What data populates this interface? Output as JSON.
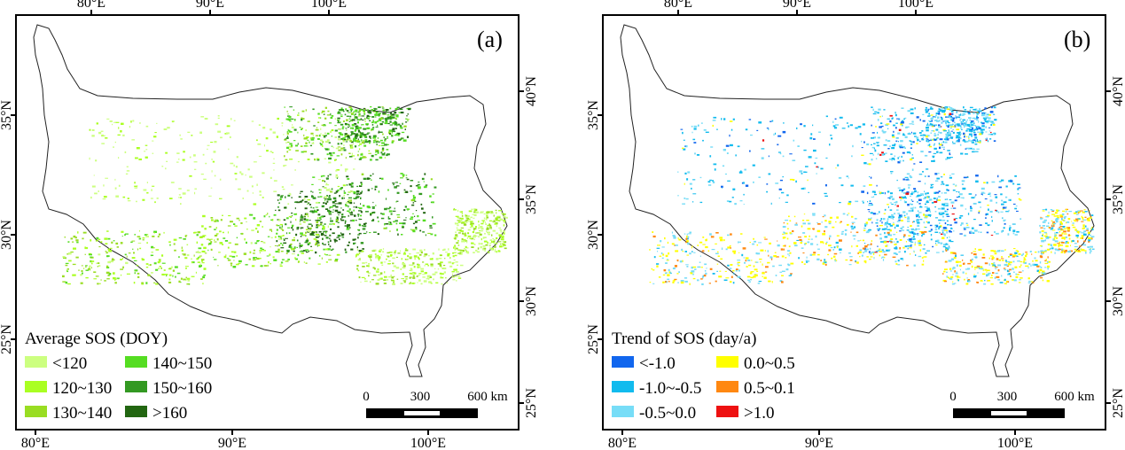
{
  "panels": [
    {
      "label": "(a)",
      "legend_title": "Average SOS (DOY)",
      "legend": [
        {
          "label": "<120",
          "color": "#ccff80"
        },
        {
          "label": "120~130",
          "color": "#aaff22"
        },
        {
          "label": "130~140",
          "color": "#99dd22"
        },
        {
          "label": "140~150",
          "color": "#55dd22"
        },
        {
          "label": "150~160",
          "color": "#339922"
        },
        {
          "label": ">160",
          "color": "#226611"
        }
      ],
      "top_ticks": [
        "80°E",
        "90°E",
        "100°E"
      ],
      "bottom_ticks": [
        "80°E",
        "90°E",
        "100°E"
      ],
      "left_ticks": [
        "35°N",
        "30°N",
        "25°N"
      ],
      "right_ticks": [
        "40°N",
        "35°N",
        "30°N",
        "25°N"
      ],
      "scale": [
        "0",
        "300",
        "600 km"
      ]
    },
    {
      "label": "(b)",
      "legend_title": "Trend of SOS (day/a)",
      "legend": [
        {
          "label": "<-1.0",
          "color": "#1166ee"
        },
        {
          "label": "-1.0~-0.5",
          "color": "#11bbee"
        },
        {
          "label": "-0.5~0.0",
          "color": "#77ddf7"
        },
        {
          "label": "0.0~0.5",
          "color": "#ffff00"
        },
        {
          "label": "0.5~0.1",
          "color": "#ff8811"
        },
        {
          "label": ">1.0",
          "color": "#ee1111"
        }
      ],
      "top_ticks": [
        "80°E",
        "90°E",
        "100°E"
      ],
      "bottom_ticks": [
        "80°E",
        "90°E",
        "100°E"
      ],
      "left_ticks": [
        "35°N",
        "30°N",
        "25°N"
      ],
      "right_ticks": [
        "40°N",
        "35°N",
        "30°N",
        "25°N"
      ],
      "scale": [
        "0",
        "300",
        "600 km"
      ]
    }
  ]
}
